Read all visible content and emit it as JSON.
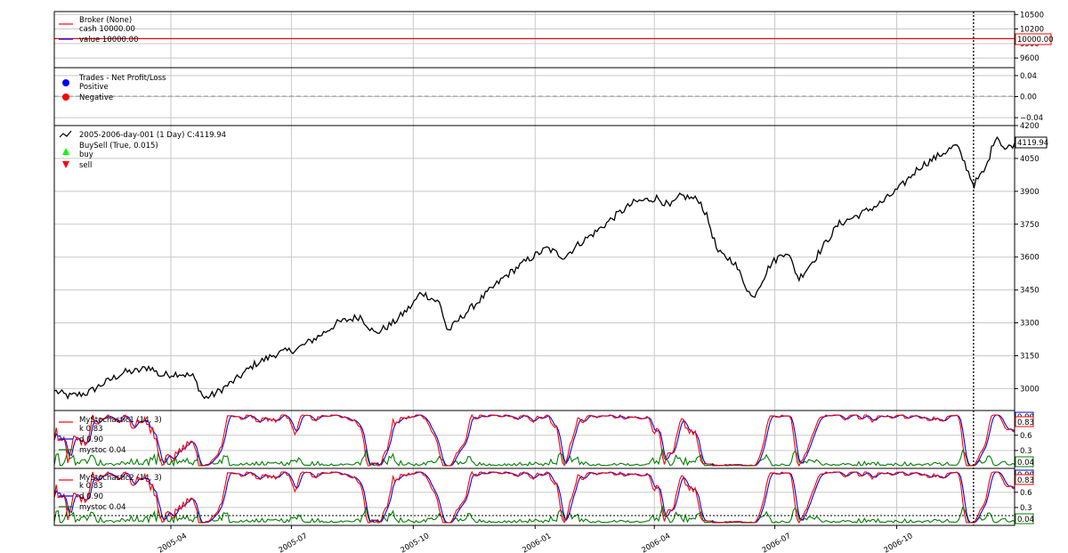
{
  "broker": {
    "legend": [
      "Broker (None)",
      "cash 10000.00",
      "value 10000.00"
    ],
    "yticks": [
      "10500",
      "10200",
      "9900",
      "9600"
    ],
    "value_tag": "10000.00",
    "ylim": [
      9400,
      10560
    ],
    "cash": 10000,
    "value": 10000
  },
  "trades": {
    "legend": [
      "Trades - Net Profit/Loss",
      "Positive",
      "Negative"
    ],
    "yticks": [
      "0.04",
      "0.00",
      "−0.04"
    ],
    "ylim": [
      -0.055,
      0.055
    ]
  },
  "price": {
    "legend": [
      "2005-2006-day-001 (1 Day) C:4119.94",
      "BuySell (True, 0.015)",
      "buy",
      "sell"
    ],
    "yticks": [
      "4200",
      "4050",
      "3900",
      "3750",
      "3600",
      "3450",
      "3300",
      "3150",
      "3000"
    ],
    "last_tag": "4119.94",
    "ylim": [
      2900,
      4200
    ]
  },
  "stoch1": {
    "legend": [
      "MyStochastic1 (14, 3)",
      "k 0.83",
      "d 0.90",
      "mystoc 0.04"
    ],
    "yticks": [
      "0.6",
      "0.3"
    ],
    "tags": [
      "0.90",
      "0.83",
      "0.04"
    ]
  },
  "stoch2": {
    "legend": [
      "MyStochastic2 (14, 3)",
      "k 0.83",
      "d 0.90",
      "mystoc 0.04"
    ],
    "yticks": [
      "0.6",
      "0.3"
    ],
    "tags": [
      "0.90",
      "0.83",
      "0.04"
    ]
  },
  "xticks": [
    "2005-04",
    "2005-07",
    "2005-10",
    "2006-01",
    "2006-04",
    "2006-07",
    "2006-10"
  ],
  "colors": {
    "k": "#ff0000",
    "d": "#0000ff",
    "mystoc": "#008000",
    "price": "#000000",
    "cash": "#ff0000",
    "value": "#0000ff",
    "positive": "#0000ff",
    "negative": "#ff0000",
    "buy": "#00ff00",
    "sell": "#ff0000"
  },
  "chart_data": {
    "type": "line",
    "title": "",
    "x_range": [
      "2005-01-03",
      "2006-12-29"
    ],
    "x_ticks": [
      "2005-04",
      "2005-07",
      "2005-10",
      "2006-01",
      "2006-04",
      "2006-07",
      "2006-10"
    ],
    "cursor_date": "2006-11-28",
    "series": [
      {
        "name": "2005-2006-day-001 (1 Day) C:4119.94",
        "points": [
          [
            "2005-01-03",
            2990
          ],
          [
            "2005-01-14",
            2965
          ],
          [
            "2005-01-28",
            2980
          ],
          [
            "2005-02-11",
            3030
          ],
          [
            "2005-02-25",
            3075
          ],
          [
            "2005-03-07",
            3080
          ],
          [
            "2005-03-16",
            3100
          ],
          [
            "2005-03-24",
            3060
          ],
          [
            "2005-04-07",
            3070
          ],
          [
            "2005-04-18",
            3055
          ],
          [
            "2005-04-26",
            2955
          ],
          [
            "2005-05-04",
            2975
          ],
          [
            "2005-05-20",
            3040
          ],
          [
            "2005-06-03",
            3110
          ],
          [
            "2005-06-20",
            3160
          ],
          [
            "2005-07-05",
            3180
          ],
          [
            "2005-07-22",
            3240
          ],
          [
            "2005-08-05",
            3300
          ],
          [
            "2005-08-22",
            3330
          ],
          [
            "2005-09-02",
            3250
          ],
          [
            "2005-09-16",
            3300
          ],
          [
            "2005-09-30",
            3380
          ],
          [
            "2005-10-07",
            3440
          ],
          [
            "2005-10-21",
            3390
          ],
          [
            "2005-10-27",
            3260
          ],
          [
            "2005-11-07",
            3330
          ],
          [
            "2005-11-23",
            3420
          ],
          [
            "2005-12-09",
            3510
          ],
          [
            "2005-12-27",
            3590
          ],
          [
            "2006-01-10",
            3640
          ],
          [
            "2006-01-23",
            3600
          ],
          [
            "2006-02-03",
            3660
          ],
          [
            "2006-02-17",
            3720
          ],
          [
            "2006-03-03",
            3790
          ],
          [
            "2006-03-17",
            3850
          ],
          [
            "2006-04-03",
            3870
          ],
          [
            "2006-04-13",
            3830
          ],
          [
            "2006-04-21",
            3880
          ],
          [
            "2006-05-05",
            3860
          ],
          [
            "2006-05-11",
            3780
          ],
          [
            "2006-05-19",
            3620
          ],
          [
            "2006-05-31",
            3580
          ],
          [
            "2006-06-14",
            3410
          ],
          [
            "2006-06-28",
            3570
          ],
          [
            "2006-07-10",
            3630
          ],
          [
            "2006-07-19",
            3500
          ],
          [
            "2006-08-01",
            3600
          ],
          [
            "2006-08-18",
            3750
          ],
          [
            "2006-09-05",
            3800
          ],
          [
            "2006-09-20",
            3850
          ],
          [
            "2006-10-04",
            3920
          ],
          [
            "2006-10-18",
            4010
          ],
          [
            "2006-11-01",
            4060
          ],
          [
            "2006-11-15",
            4110
          ],
          [
            "2006-11-22",
            4020
          ],
          [
            "2006-11-28",
            3930
          ],
          [
            "2006-12-07",
            4000
          ],
          [
            "2006-12-15",
            4160
          ],
          [
            "2006-12-22",
            4090
          ],
          [
            "2006-12-29",
            4119.94
          ]
        ]
      },
      {
        "name": "value 10000.00",
        "constant": 10000
      },
      {
        "name": "cash 10000.00",
        "constant": 10000
      },
      {
        "name": "k 0.83",
        "last": 0.83,
        "range": [
          0,
          1
        ]
      },
      {
        "name": "d 0.90",
        "last": 0.9,
        "range": [
          0,
          1
        ]
      },
      {
        "name": "mystoc 0.04",
        "last": 0.04,
        "range": [
          0,
          1
        ]
      }
    ]
  }
}
